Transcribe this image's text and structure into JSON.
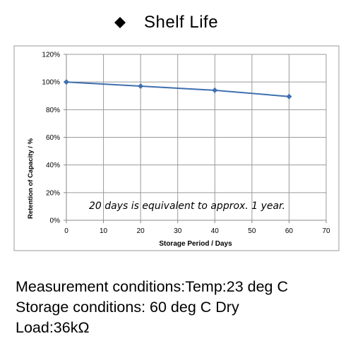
{
  "header": {
    "bullet_icon": "diamond-bullet-icon",
    "title": "Shelf  Life"
  },
  "chart_data": {
    "type": "line",
    "title": "",
    "xlabel": "Storage Period / Days",
    "ylabel": "Retention of Capacity / %",
    "x": [
      0,
      20,
      40,
      60
    ],
    "series": [
      {
        "values": [
          100,
          97,
          94,
          89.5
        ],
        "color": "#3e6fb0"
      }
    ],
    "xlim": [
      0,
      70
    ],
    "ylim": [
      0,
      120
    ],
    "x_ticks": [
      "0",
      "10",
      "20",
      "30",
      "40",
      "50",
      "60",
      "70"
    ],
    "y_ticks": [
      "0%",
      "20%",
      "40%",
      "60%",
      "80%",
      "100%",
      "120%"
    ],
    "grid": true,
    "annotation": "20 days is equivalent to approx. 1 year."
  },
  "conditions": {
    "measurement": "Measurement conditions:Temp:23 deg C",
    "storage": "Storage conditions: 60 deg C Dry",
    "load": "Load:36kΩ"
  }
}
